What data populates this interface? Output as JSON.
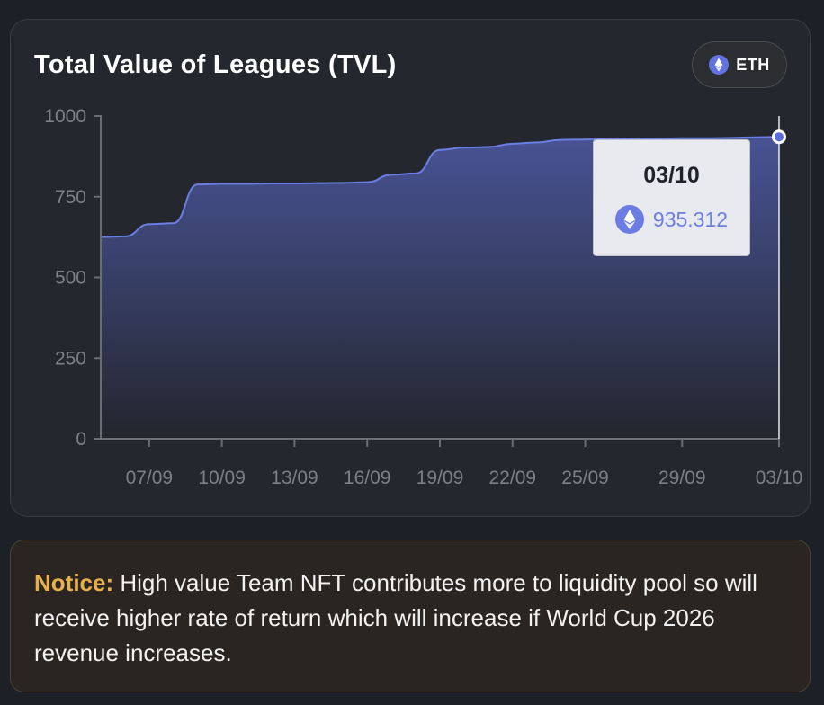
{
  "card": {
    "title": "Total Value of Leagues (TVL)",
    "currency_button": {
      "label": "ETH",
      "icon": "ethereum-icon"
    }
  },
  "tooltip": {
    "date": "03/10",
    "value": "935.312",
    "icon": "ethereum-icon"
  },
  "notice": {
    "heading": "Notice:",
    "text": " High value Team NFT contributes more to liquidity pool so will receive higher rate of return which will increase if World Cup 2026 revenue increases."
  },
  "colors": {
    "background": "#1d2026",
    "card": "#24272e",
    "line": "#6b7fe3",
    "area_top": "#4a5599",
    "accent_eth": "#6273e0",
    "notice_heading": "#e6b04f"
  },
  "chart_data": {
    "type": "area",
    "title": "Total Value of Leagues (TVL)",
    "ylim": [
      0,
      1000
    ],
    "yticks": [
      "0",
      "250",
      "500",
      "750",
      "1000"
    ],
    "xticks": [
      "07/09",
      "10/09",
      "13/09",
      "16/09",
      "19/09",
      "22/09",
      "25/09",
      "29/09",
      "03/10"
    ],
    "series": [
      {
        "x": [
          "05/09",
          "06/09",
          "07/09",
          "08/09",
          "09/09",
          "10/09",
          "11/09",
          "12/09",
          "13/09",
          "14/09",
          "15/09",
          "16/09",
          "17/09",
          "18/09",
          "19/09",
          "20/09",
          "21/09",
          "22/09",
          "23/09",
          "24/09",
          "25/09",
          "26/09",
          "27/09",
          "28/09",
          "29/09",
          "30/09",
          "01/10",
          "02/10",
          "03/10"
        ],
        "values": [
          625,
          627,
          665,
          668,
          788,
          790,
          790,
          791,
          791,
          792,
          793,
          795,
          818,
          822,
          895,
          902,
          904,
          914,
          918,
          926,
          927,
          928,
          929,
          930,
          931,
          931,
          932,
          934,
          935.312
        ]
      }
    ],
    "grid": false
  }
}
